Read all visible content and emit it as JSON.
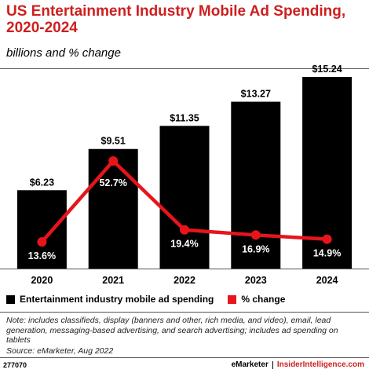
{
  "header": {
    "title": "US Entertainment Industry Mobile Ad Spending, 2020-2024",
    "subtitle": "billions and % change"
  },
  "chart_data": {
    "type": "bar",
    "categories": [
      "2020",
      "2021",
      "2022",
      "2023",
      "2024"
    ],
    "series": [
      {
        "name": "Entertainment industry mobile ad spending",
        "kind": "bar",
        "color": "#000000",
        "values": [
          6.23,
          9.51,
          11.35,
          13.27,
          15.24
        ],
        "labels": [
          "$6.23",
          "$9.51",
          "$11.35",
          "$13.27",
          "$15.24"
        ]
      },
      {
        "name": "% change",
        "kind": "line",
        "color": "#e8141b",
        "values": [
          13.6,
          52.7,
          19.4,
          16.9,
          14.9
        ],
        "labels": [
          "13.6%",
          "52.7%",
          "19.4%",
          "16.9%",
          "14.9%"
        ]
      }
    ],
    "legend": "bottom-left",
    "grid": false
  },
  "legend": {
    "items": [
      {
        "label": "Entertainment industry mobile ad spending",
        "color": "#000000"
      },
      {
        "label": "% change",
        "color": "#e8141b"
      }
    ]
  },
  "footnote": {
    "note": "Note: includes classifieds, display (banners and other, rich media, and video), email, lead generation, messaging-based advertising, and search advertising; includes ad spending on tablets",
    "source": "Source: eMarketer, Aug 2022"
  },
  "footer": {
    "chart_id": "277070",
    "brand_emarketer": "eMarketer",
    "brand_insider": "InsiderIntelligence.com"
  },
  "colors": {
    "title": "#ce1f1f",
    "bar": "#000000",
    "line": "#e8141b"
  }
}
